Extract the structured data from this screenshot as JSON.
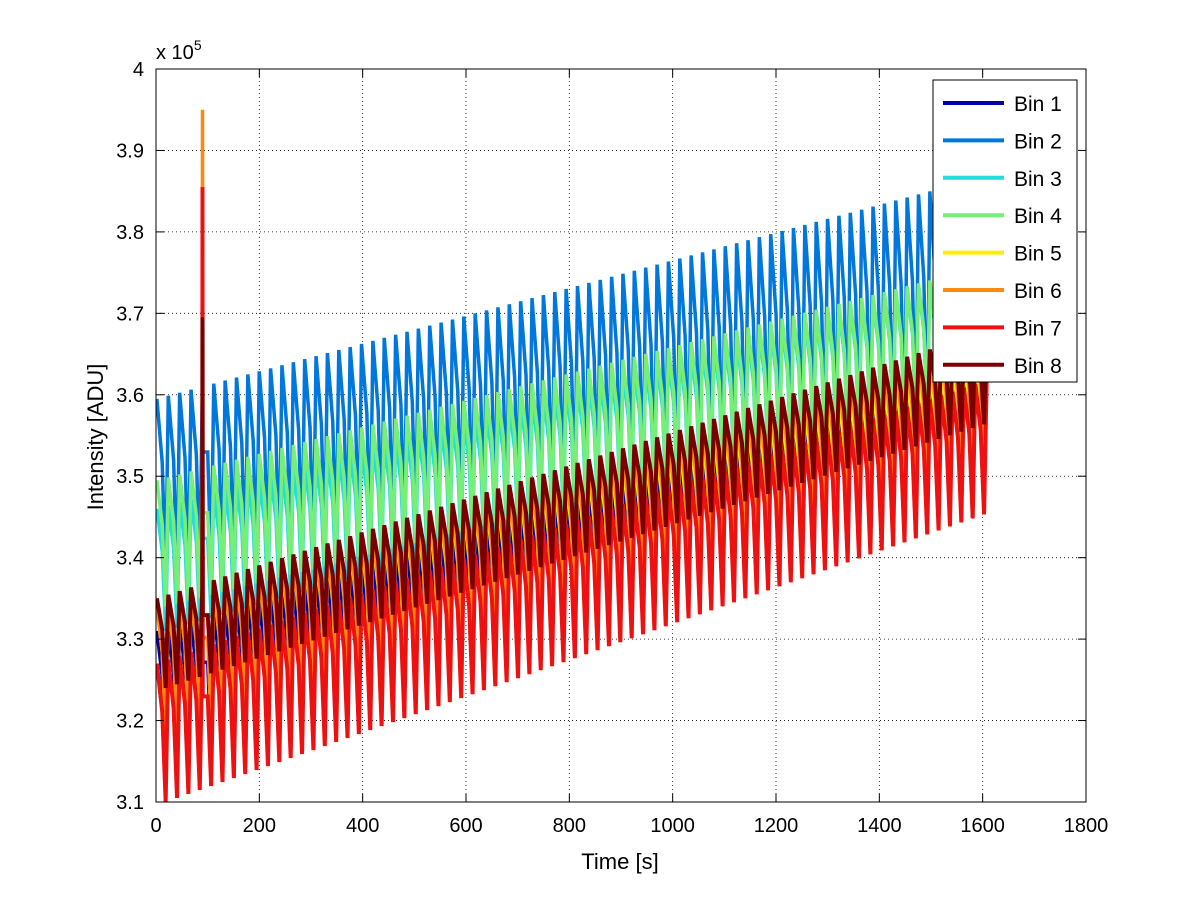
{
  "chart_data": {
    "type": "line",
    "title": "",
    "xlabel": "Time [s]",
    "ylabel": "Intensity [ADU]",
    "y_exponent_label": "x 10",
    "y_exponent_power": "5",
    "xlim": [
      0,
      1800
    ],
    "ylim": [
      310000,
      400000
    ],
    "x_ticks": [
      0,
      200,
      400,
      600,
      800,
      1000,
      1200,
      1400,
      1600,
      1800
    ],
    "x_tick_labels": [
      "0",
      "200",
      "400",
      "600",
      "800",
      "1000",
      "1200",
      "1400",
      "1600",
      "1800"
    ],
    "y_ticks": [
      310000,
      320000,
      330000,
      340000,
      350000,
      360000,
      370000,
      380000,
      390000,
      400000
    ],
    "y_tick_labels": [
      "3.1",
      "3.2",
      "3.3",
      "3.4",
      "3.5",
      "3.6",
      "3.7",
      "3.8",
      "3.9",
      "4"
    ],
    "grid": true,
    "legend_position": "top-right",
    "x_end": 1615,
    "period_s": 22,
    "spike_time_s": 90,
    "series": [
      {
        "name": "Bin 1",
        "color": "#0000aa",
        "high_start": 331000,
        "high_end": 364000,
        "low_start": 315000,
        "low_end": 346000,
        "spike_peak": 333000
      },
      {
        "name": "Bin 2",
        "color": "#0077dd",
        "high_start": 359500,
        "high_end": 387000,
        "low_start": 337000,
        "low_end": 357000,
        "spike_peak": 360000
      },
      {
        "name": "Bin 3",
        "color": "#22dddd",
        "high_start": 346000,
        "high_end": 376000,
        "low_start": 331000,
        "low_end": 360000,
        "spike_peak": 347000
      },
      {
        "name": "Bin 4",
        "color": "#77ee77",
        "high_start": 349500,
        "high_end": 376000,
        "low_start": 334000,
        "low_end": 360000,
        "spike_peak": 350000
      },
      {
        "name": "Bin 5",
        "color": "#ffee00",
        "high_start": 334000,
        "high_end": 366000,
        "low_start": 318000,
        "low_end": 347000,
        "spike_peak": 335000
      },
      {
        "name": "Bin 6",
        "color": "#ff8811",
        "high_start": 334000,
        "high_end": 368000,
        "low_start": 318000,
        "low_end": 350000,
        "spike_peak": 395000
      },
      {
        "name": "Bin 7",
        "color": "#ee1111",
        "high_start": 327000,
        "high_end": 362000,
        "low_start": 310000,
        "low_end": 346000,
        "spike_peak": 385500
      },
      {
        "name": "Bin 8",
        "color": "#7a0000",
        "high_start": 335000,
        "high_end": 368000,
        "low_start": 324000,
        "low_end": 357000,
        "spike_peak": 369500
      }
    ]
  }
}
